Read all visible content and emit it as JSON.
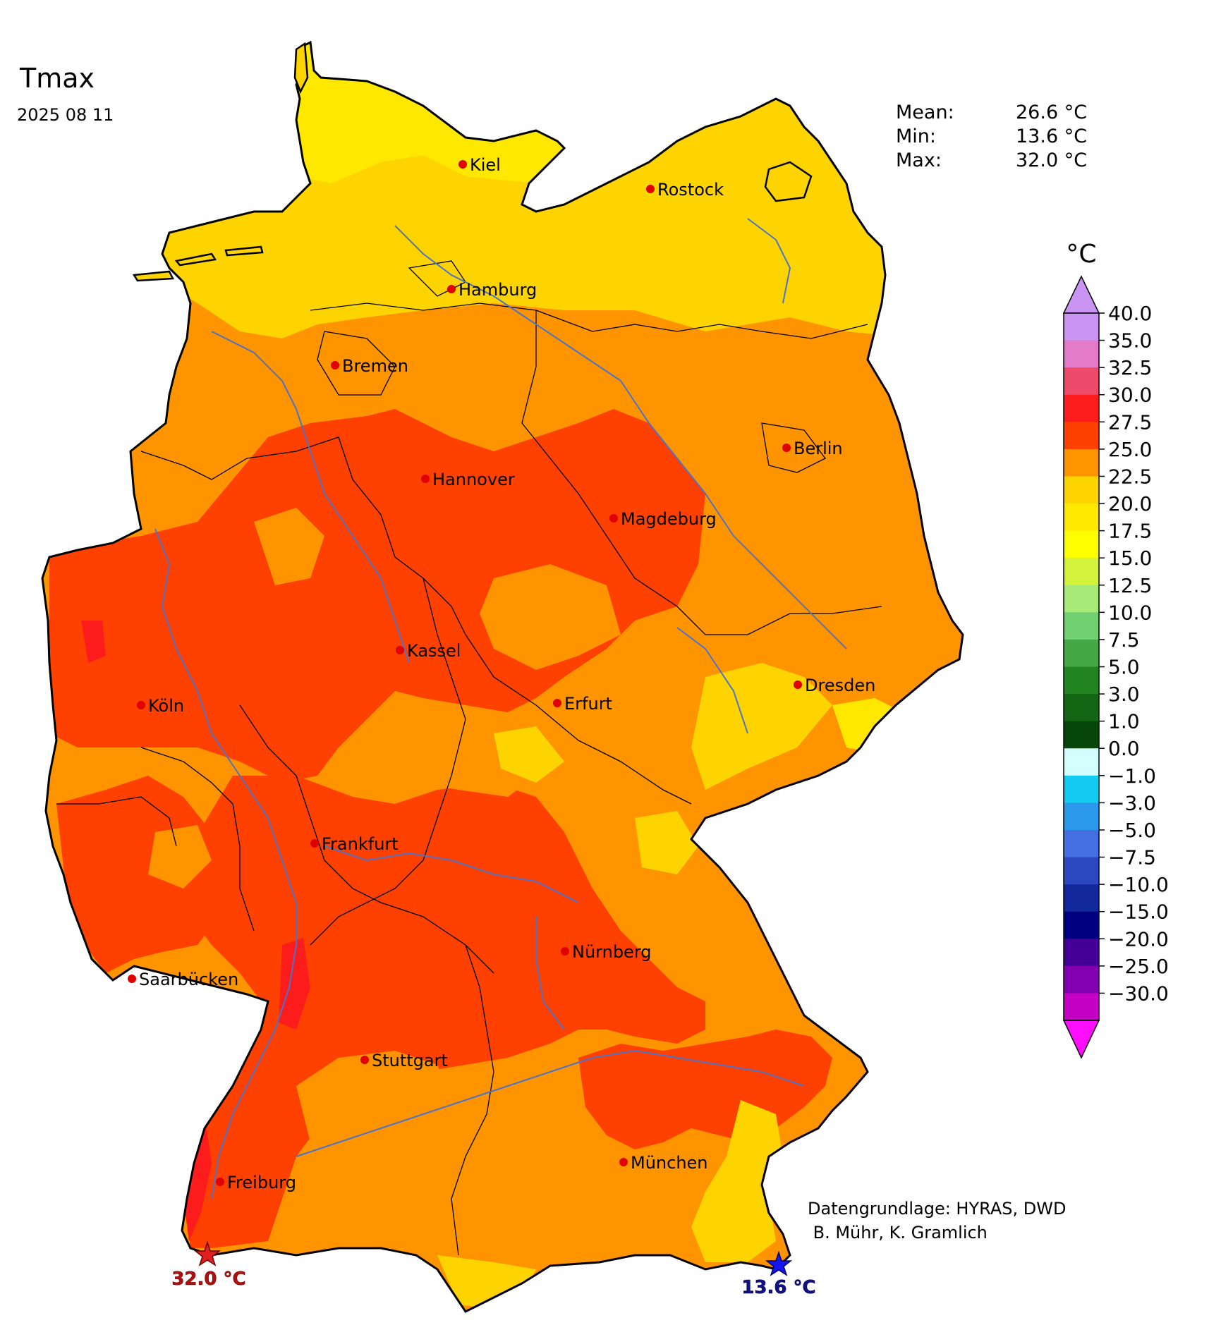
{
  "title": "Tmax",
  "date": "2025 08 11",
  "stats": [
    {
      "label": "Mean:",
      "value": "26.6 °C"
    },
    {
      "label": "Min:",
      "value": "13.6 °C"
    },
    {
      "label": "Max:",
      "value": "32.0 °C"
    }
  ],
  "colorbar": {
    "unit": "°C",
    "bins": [
      {
        "label": "40.0",
        "color": "#c994f2"
      },
      {
        "label": "35.0",
        "color": "#e37bc8"
      },
      {
        "label": "32.5",
        "color": "#ee4a6c"
      },
      {
        "label": "30.0",
        "color": "#fc1c1c"
      },
      {
        "label": "27.5",
        "color": "#fe4000"
      },
      {
        "label": "25.0",
        "color": "#fe9400"
      },
      {
        "label": "22.5",
        "color": "#fed400"
      },
      {
        "label": "20.0",
        "color": "#fee800"
      },
      {
        "label": "17.5",
        "color": "#fefe00"
      },
      {
        "label": "15.0",
        "color": "#d4f23c"
      },
      {
        "label": "12.5",
        "color": "#a8ea78"
      },
      {
        "label": "10.0",
        "color": "#70d070"
      },
      {
        "label": "7.5",
        "color": "#44a844"
      },
      {
        "label": "5.0",
        "color": "#218421"
      },
      {
        "label": "3.0",
        "color": "#136613"
      },
      {
        "label": "1.0",
        "color": "#06460a"
      },
      {
        "label": "0.0",
        "color": "#d4fefe"
      },
      {
        "label": "−1.0",
        "color": "#14ccf2"
      },
      {
        "label": "−3.0",
        "color": "#2c9aea"
      },
      {
        "label": "−5.0",
        "color": "#4470e2"
      },
      {
        "label": "−7.5",
        "color": "#2c48c0"
      },
      {
        "label": "−10.0",
        "color": "#14289e"
      },
      {
        "label": "−15.0",
        "color": "#000080"
      },
      {
        "label": "−20.0",
        "color": "#440096"
      },
      {
        "label": "−25.0",
        "color": "#8200b0"
      },
      {
        "label": "−30.0",
        "color": "#c400c4"
      }
    ],
    "top_extend_color": "#c994f2",
    "bottom_extend_color": "#fe0efe"
  },
  "cities": [
    {
      "name": "Kiel"
    },
    {
      "name": "Rostock"
    },
    {
      "name": "Hamburg"
    },
    {
      "name": "Bremen"
    },
    {
      "name": "Berlin"
    },
    {
      "name": "Hannover"
    },
    {
      "name": "Magdeburg"
    },
    {
      "name": "Kassel"
    },
    {
      "name": "Dresden"
    },
    {
      "name": "Köln"
    },
    {
      "name": "Erfurt"
    },
    {
      "name": "Frankfurt"
    },
    {
      "name": "Nürnberg"
    },
    {
      "name": "Saarbücken"
    },
    {
      "name": "Stuttgart"
    },
    {
      "name": "München"
    },
    {
      "name": "Freiburg"
    }
  ],
  "extremes": {
    "max_label": "32.0 °C",
    "min_label": "13.6 °C",
    "max_color": "#e02020",
    "min_color": "#1515ee"
  },
  "credits": {
    "line1": "Datengrundlage: HYRAS, DWD",
    "line2": " B. Mühr, K. Gramlich"
  }
}
